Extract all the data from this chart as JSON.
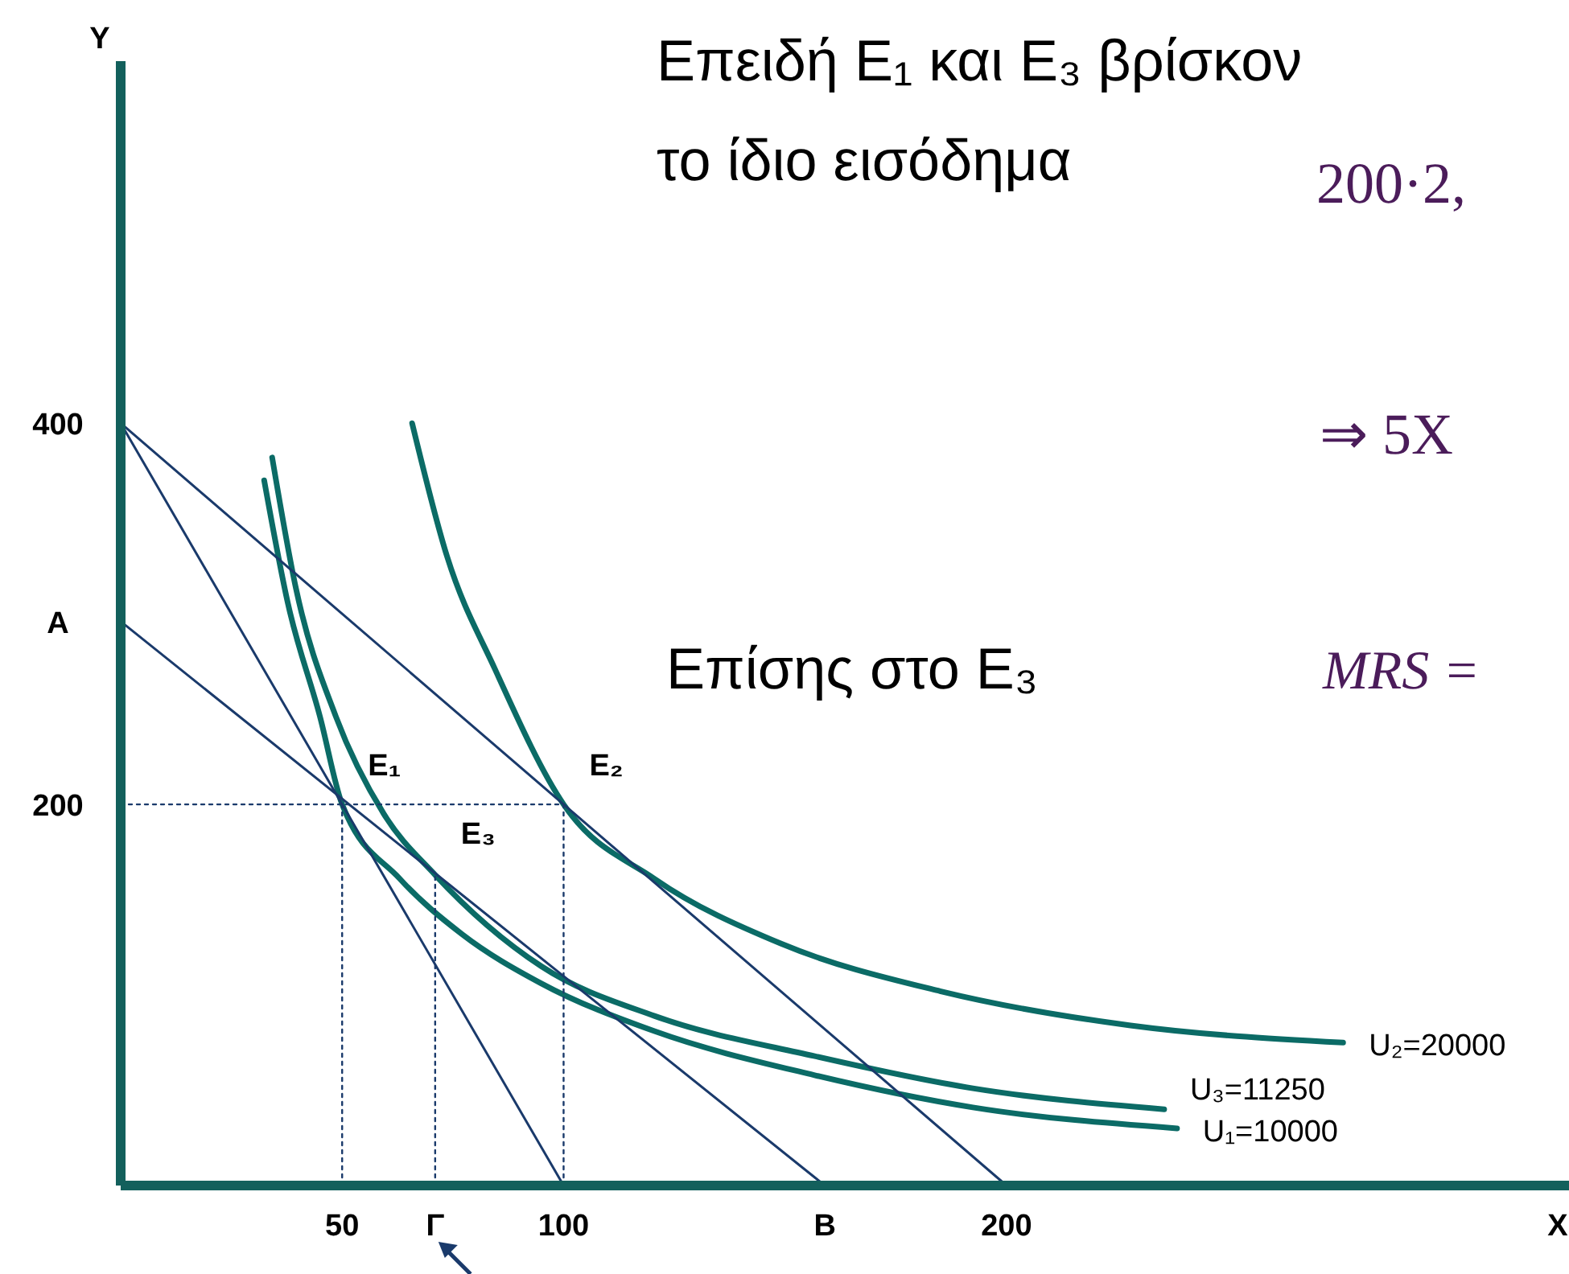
{
  "chart_data": {
    "type": "line",
    "xlabel": "X",
    "ylabel": "Y",
    "xlim": [
      0,
      327
    ],
    "ylim": [
      0,
      590
    ],
    "xticks": [
      50,
      {
        "value": 71,
        "label": "Γ"
      },
      100,
      {
        "value": 159,
        "label": "B"
      },
      200
    ],
    "yticks": [
      200,
      {
        "value": 296,
        "label": "A"
      },
      400
    ],
    "grid": false,
    "marker": "none",
    "series": [
      {
        "name": "U₁=10000",
        "color": "#0b6b66",
        "x": [
          32.4,
          37.8,
          45,
          50,
          63,
          77,
          95,
          120.5,
          156.5,
          192.4,
          238.5
        ],
        "values": [
          370,
          305,
          246,
          200,
          161,
          132,
          106,
          81,
          58,
          41,
          30
        ]
      },
      {
        "name": "U₃=11250",
        "color": "#0b6b66",
        "x": [
          34.2,
          39.6,
          48.6,
          59.4,
          71,
          95,
          120.5,
          156.5,
          192.4,
          235.6
        ],
        "values": [
          382,
          313,
          246,
          195,
          163,
          115,
          89,
          68,
          51,
          40
        ]
      },
      {
        "name": "U₂=20000",
        "color": "#0b6b66",
        "x": [
          65.8,
          73.7,
          84.5,
          100,
          120.5,
          149,
          185,
          228,
          276
        ],
        "values": [
          400,
          330,
          271,
          200,
          161,
          127,
          102,
          84,
          75
        ]
      },
      {
        "color": "#1a3a6b",
        "x": [
          0,
          100
        ],
        "values": [
          400,
          0
        ]
      },
      {
        "color": "#1a3a6b",
        "x": [
          0,
          200
        ],
        "values": [
          400,
          0
        ]
      },
      {
        "color": "#1a3a6b",
        "x": [
          0,
          159
        ],
        "values": [
          296,
          0
        ]
      },
      {
        "color": "#1a3a6b",
        "line_style": "dotted",
        "x": [
          0,
          100
        ],
        "values": [
          200,
          200
        ]
      },
      {
        "color": "#1a3a6b",
        "line_style": "dotted",
        "x": [
          50,
          50
        ],
        "values": [
          0,
          200
        ]
      },
      {
        "color": "#1a3a6b",
        "line_style": "dotted",
        "x": [
          71,
          71
        ],
        "values": [
          0,
          164
        ]
      },
      {
        "color": "#1a3a6b",
        "line_style": "dotted",
        "x": [
          100,
          100
        ],
        "values": [
          0,
          200
        ]
      }
    ],
    "annotations": [
      {
        "text": "E₁",
        "x": 50,
        "y": 200
      },
      {
        "text": "E₂",
        "x": 100,
        "y": 200
      },
      {
        "text": "E₃",
        "x": 71,
        "y": 164
      },
      "Επειδή E₁ και E₃ βρίσκον",
      "το ίδιο εισόδημα",
      "200·2,",
      "⇒ 5X",
      "Επίσης στο E₃",
      "MRS ="
    ]
  }
}
